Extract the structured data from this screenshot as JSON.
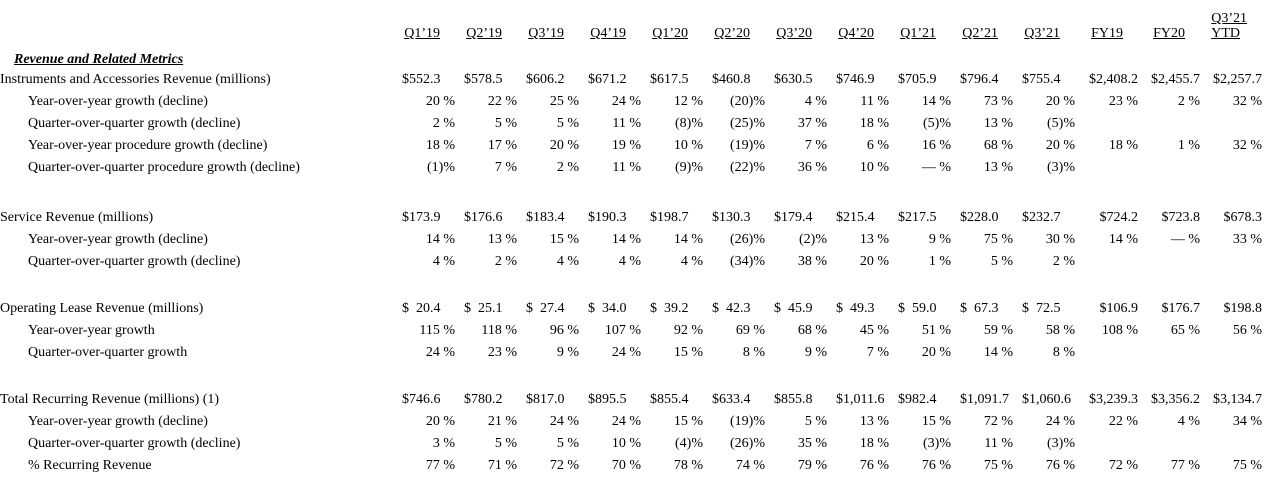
{
  "colors": {
    "text": "#000000",
    "background": "#ffffff"
  },
  "table": {
    "section_title": "Revenue and Related Metrics",
    "column_headers": [
      "Q1’19",
      "Q2’19",
      "Q3’19",
      "Q4’19",
      "Q1’20",
      "Q2’20",
      "Q3’20",
      "Q4’20",
      "Q1’21",
      "Q2’21",
      "Q3’21",
      "FY19",
      "FY20"
    ],
    "last_column_header": {
      "line1": "Q3’21",
      "line2": "YTD"
    },
    "rows": [
      {
        "label": "Instruments and Accessories Revenue (millions)",
        "indent": false,
        "type": "dollar",
        "values": [
          "$552.3",
          "$578.5",
          "$606.2",
          "$671.2",
          "$617.5",
          "$460.8",
          "$630.5",
          "$746.9",
          "$705.9",
          "$796.4",
          "$755.4",
          "$2,408.2",
          "$2,455.7",
          "$2,257.7"
        ]
      },
      {
        "label": "Year-over-year growth (decline)",
        "indent": true,
        "type": "percent",
        "values": [
          "20 %",
          "22 %",
          "25 %",
          "24 %",
          "12 %",
          "(20)%",
          "4 %",
          "11 %",
          "14 %",
          "73 %",
          "20 %",
          "23 %",
          "2 %",
          "32 %"
        ]
      },
      {
        "label": "Quarter-over-quarter growth (decline)",
        "indent": true,
        "type": "percent",
        "values": [
          "2 %",
          "5 %",
          "5 %",
          "11 %",
          "(8)%",
          "(25)%",
          "37 %",
          "18 %",
          "(5)%",
          "13 %",
          "(5)%",
          "",
          "",
          ""
        ]
      },
      {
        "label": "Year-over-year procedure growth (decline)",
        "indent": true,
        "type": "percent",
        "values": [
          "18 %",
          "17 %",
          "20 %",
          "19 %",
          "10 %",
          "(19)%",
          "7 %",
          "6 %",
          "16 %",
          "68 %",
          "20 %",
          "18 %",
          "1 %",
          "32 %"
        ]
      },
      {
        "label": "Quarter-over-quarter procedure growth (decline)",
        "indent": true,
        "type": "percent",
        "values": [
          "(1)%",
          "7 %",
          "2 %",
          "11 %",
          "(9)%",
          "(22)%",
          "36 %",
          "10 %",
          "— %",
          "13 %",
          "(3)%",
          "",
          "",
          ""
        ]
      },
      {
        "spacer": true
      },
      {
        "label": "Service Revenue (millions)",
        "indent": false,
        "type": "dollar",
        "values": [
          "$173.9",
          "$176.6",
          "$183.4",
          "$190.3",
          "$198.7",
          "$130.3",
          "$179.4",
          "$215.4",
          "$217.5",
          "$228.0",
          "$232.7",
          "$724.2",
          "$723.8",
          "$678.3"
        ]
      },
      {
        "label": "Year-over-year growth (decline)",
        "indent": true,
        "type": "percent",
        "values": [
          "14 %",
          "13 %",
          "15 %",
          "14 %",
          "14 %",
          "(26)%",
          "(2)%",
          "13 %",
          "9 %",
          "75 %",
          "30 %",
          "14 %",
          "— %",
          "33 %"
        ]
      },
      {
        "label": "Quarter-over-quarter growth (decline)",
        "indent": true,
        "type": "percent",
        "values": [
          "4 %",
          "2 %",
          "4 %",
          "4 %",
          "4 %",
          "(34)%",
          "38 %",
          "20 %",
          "1 %",
          "5 %",
          "2 %",
          "",
          "",
          ""
        ]
      },
      {
        "spacer": true
      },
      {
        "label": "Operating Lease Revenue (millions)",
        "indent": false,
        "type": "dollar",
        "values": [
          "$  20.4",
          "$  25.1",
          "$  27.4",
          "$  34.0",
          "$  39.2",
          "$  42.3",
          "$  45.9",
          "$  49.3",
          "$  59.0",
          "$  67.3",
          "$  72.5",
          "$106.9",
          "$176.7",
          "$198.8"
        ]
      },
      {
        "label": "Year-over-year growth",
        "indent": true,
        "type": "percent",
        "values": [
          "115 %",
          "118 %",
          "96 %",
          "107 %",
          "92 %",
          "69 %",
          "68 %",
          "45 %",
          "51 %",
          "59 %",
          "58 %",
          "108 %",
          "65 %",
          "56 %"
        ]
      },
      {
        "label": "Quarter-over-quarter growth",
        "indent": true,
        "type": "percent",
        "values": [
          "24 %",
          "23 %",
          "9 %",
          "24 %",
          "15 %",
          "8 %",
          "9 %",
          "7 %",
          "20 %",
          "14 %",
          "8 %",
          "",
          "",
          ""
        ]
      },
      {
        "spacer": true
      },
      {
        "label": "Total Recurring Revenue (millions) (1)",
        "indent": false,
        "type": "dollar",
        "values": [
          "$746.6",
          "$780.2",
          "$817.0",
          "$895.5",
          "$855.4",
          "$633.4",
          "$855.8",
          "$1,011.6",
          "$982.4",
          "$1,091.7",
          "$1,060.6",
          "$3,239.3",
          "$3,356.2",
          "$3,134.7"
        ]
      },
      {
        "label": "Year-over-year growth (decline)",
        "indent": true,
        "type": "percent",
        "values": [
          "20 %",
          "21 %",
          "24 %",
          "24 %",
          "15 %",
          "(19)%",
          "5 %",
          "13 %",
          "15 %",
          "72 %",
          "24 %",
          "22 %",
          "4 %",
          "34 %"
        ]
      },
      {
        "label": "Quarter-over-quarter growth (decline)",
        "indent": true,
        "type": "percent",
        "values": [
          "3 %",
          "5 %",
          "5 %",
          "10 %",
          "(4)%",
          "(26)%",
          "35 %",
          "18 %",
          "(3)%",
          "11 %",
          "(3)%",
          "",
          "",
          ""
        ]
      },
      {
        "label": "% Recurring Revenue",
        "indent": true,
        "type": "percent",
        "values": [
          "77 %",
          "71 %",
          "72 %",
          "70 %",
          "78 %",
          "74 %",
          "79 %",
          "76 %",
          "76 %",
          "75 %",
          "76 %",
          "72 %",
          "77 %",
          "75 %"
        ]
      }
    ]
  }
}
